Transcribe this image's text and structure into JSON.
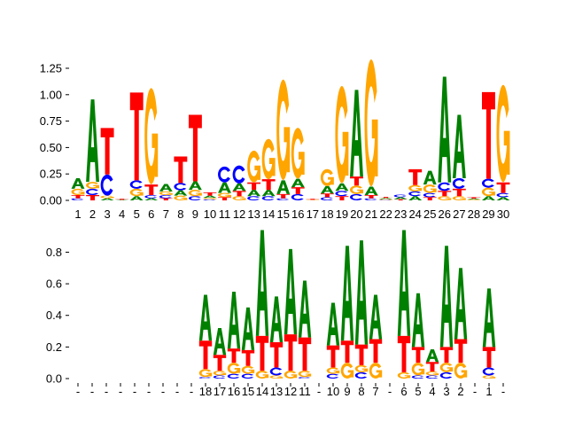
{
  "colors": {
    "A": "#008000",
    "C": "#0000ff",
    "G": "#ffa500",
    "T": "#ff0000"
  },
  "chart_data": [
    {
      "type": "sequence-logo",
      "ylim": [
        0,
        1.45
      ],
      "yticks": [
        "0.00",
        "0.25",
        "0.50",
        "0.75",
        "1.00",
        "1.25"
      ],
      "ytick_values": [
        0,
        0.25,
        0.5,
        0.75,
        1.0,
        1.25
      ],
      "x_labels": [
        "1",
        "2",
        "3",
        "4",
        "5",
        "6",
        "7",
        "8",
        "9",
        "10",
        "11",
        "12",
        "13",
        "14",
        "15",
        "16",
        "17",
        "18",
        "19",
        "20",
        "21",
        "22",
        "23",
        "24",
        "25",
        "26",
        "27",
        "28",
        "29",
        "30"
      ],
      "stacks": [
        {
          "A": 0.1,
          "C": 0.02,
          "G": 0.06,
          "T": 0.03
        },
        {
          "A": 0.78,
          "C": 0.06,
          "G": 0.065,
          "T": 0.05
        },
        {
          "A": 0.02,
          "C": 0.2,
          "G": 0.025,
          "T": 0.44
        },
        {
          "A": 0.005,
          "C": 0.0,
          "G": 0.0,
          "T": 0.01
        },
        {
          "A": 0.04,
          "C": 0.08,
          "G": 0.07,
          "T": 0.83
        },
        {
          "A": 0.02,
          "C": 0.03,
          "G": 0.91,
          "T": 0.1
        },
        {
          "A": 0.07,
          "C": 0.03,
          "G": 0.035,
          "T": 0.02
        },
        {
          "A": 0.05,
          "C": 0.07,
          "G": 0.045,
          "T": 0.25
        },
        {
          "A": 0.08,
          "C": 0.04,
          "G": 0.06,
          "T": 0.63
        },
        {
          "A": 0.02,
          "C": 0.01,
          "G": 0.015,
          "T": 0.03
        },
        {
          "A": 0.1,
          "C": 0.15,
          "G": 0.04,
          "T": 0.03
        },
        {
          "A": 0.07,
          "C": 0.17,
          "G": 0.04,
          "T": 0.05
        },
        {
          "A": 0.06,
          "C": 0.04,
          "G": 0.3,
          "T": 0.07
        },
        {
          "A": 0.06,
          "C": 0.04,
          "G": 0.38,
          "T": 0.1
        },
        {
          "A": 0.13,
          "C": 0.02,
          "G": 0.95,
          "T": 0.04
        },
        {
          "A": 0.08,
          "C": 0.06,
          "G": 0.48,
          "T": 0.065
        },
        {
          "A": 0.0,
          "C": 0.0,
          "G": 0.005,
          "T": 0.01
        },
        {
          "A": 0.07,
          "C": 0.03,
          "G": 0.16,
          "T": 0.035
        },
        {
          "A": 0.07,
          "C": 0.05,
          "G": 0.92,
          "T": 0.04
        },
        {
          "A": 0.82,
          "C": 0.06,
          "G": 0.08,
          "T": 0.085
        },
        {
          "A": 0.08,
          "C": 0.02,
          "G": 1.2,
          "T": 0.03
        },
        {
          "A": 0.01,
          "C": 0.005,
          "G": 0.008,
          "T": 0.01
        },
        {
          "A": 0.02,
          "C": 0.025,
          "G": 0.0,
          "T": 0.01
        },
        {
          "A": 0.04,
          "C": 0.045,
          "G": 0.06,
          "T": 0.15
        },
        {
          "A": 0.13,
          "C": 0.04,
          "G": 0.08,
          "T": 0.03
        },
        {
          "A": 1.0,
          "C": 0.08,
          "G": 0.04,
          "T": 0.05
        },
        {
          "A": 0.6,
          "C": 0.1,
          "G": 0.04,
          "T": 0.07
        },
        {
          "A": 0.01,
          "C": 0.0,
          "G": 0.008,
          "T": 0.012
        },
        {
          "A": 0.04,
          "C": 0.085,
          "G": 0.08,
          "T": 0.82
        },
        {
          "A": 0.03,
          "C": 0.04,
          "G": 0.92,
          "T": 0.1
        }
      ]
    },
    {
      "type": "sequence-logo",
      "ylim": [
        0,
        0.95
      ],
      "yticks": [
        "0.0",
        "0.2",
        "0.4",
        "0.6",
        "0.8"
      ],
      "ytick_values": [
        0,
        0.2,
        0.4,
        0.6,
        0.8
      ],
      "x_labels": [
        "-",
        "-",
        "-",
        "-",
        "-",
        "-",
        "-",
        "-",
        "-",
        "18",
        "17",
        "16",
        "15",
        "14",
        "13",
        "12",
        "11",
        "-",
        "10",
        "9",
        "8",
        "7",
        "-",
        "6",
        "5",
        "4",
        "3",
        "2",
        "-",
        "1",
        "-"
      ],
      "stacks": [
        null,
        null,
        null,
        null,
        null,
        null,
        null,
        null,
        null,
        {
          "A": 0.29,
          "C": 0.01,
          "G": 0.05,
          "T": 0.18
        },
        {
          "A": 0.17,
          "C": 0.02,
          "G": 0.03,
          "T": 0.1
        },
        {
          "A": 0.36,
          "C": 0.03,
          "G": 0.07,
          "T": 0.09
        },
        {
          "A": 0.27,
          "C": 0.03,
          "G": 0.05,
          "T": 0.1
        },
        {
          "A": 0.67,
          "C": 0.0,
          "G": 0.05,
          "T": 0.22
        },
        {
          "A": 0.29,
          "C": 0.05,
          "G": 0.02,
          "T": 0.16
        },
        {
          "A": 0.54,
          "C": 0.0,
          "G": 0.05,
          "T": 0.23
        },
        {
          "A": 0.36,
          "C": 0.01,
          "G": 0.04,
          "T": 0.21
        },
        null,
        {
          "A": 0.27,
          "C": 0.03,
          "G": 0.04,
          "T": 0.14
        },
        {
          "A": 0.6,
          "C": 0.0,
          "G": 0.1,
          "T": 0.14
        },
        {
          "A": 0.66,
          "C": 0.04,
          "G": 0.045,
          "T": 0.13
        },
        {
          "A": 0.28,
          "C": 0.0,
          "G": 0.1,
          "T": 0.15
        },
        null,
        {
          "A": 0.67,
          "C": 0.0,
          "G": 0.04,
          "T": 0.23
        },
        {
          "A": 0.34,
          "C": 0.02,
          "G": 0.08,
          "T": 0.1
        },
        {
          "A": 0.08,
          "C": 0.02,
          "G": 0.025,
          "T": 0.06
        },
        {
          "A": 0.64,
          "C": 0.04,
          "G": 0.06,
          "T": 0.1
        },
        {
          "A": 0.45,
          "C": 0.0,
          "G": 0.1,
          "T": 0.15
        },
        null,
        {
          "A": 0.37,
          "C": 0.05,
          "G": 0.02,
          "T": 0.13
        },
        null
      ]
    }
  ]
}
